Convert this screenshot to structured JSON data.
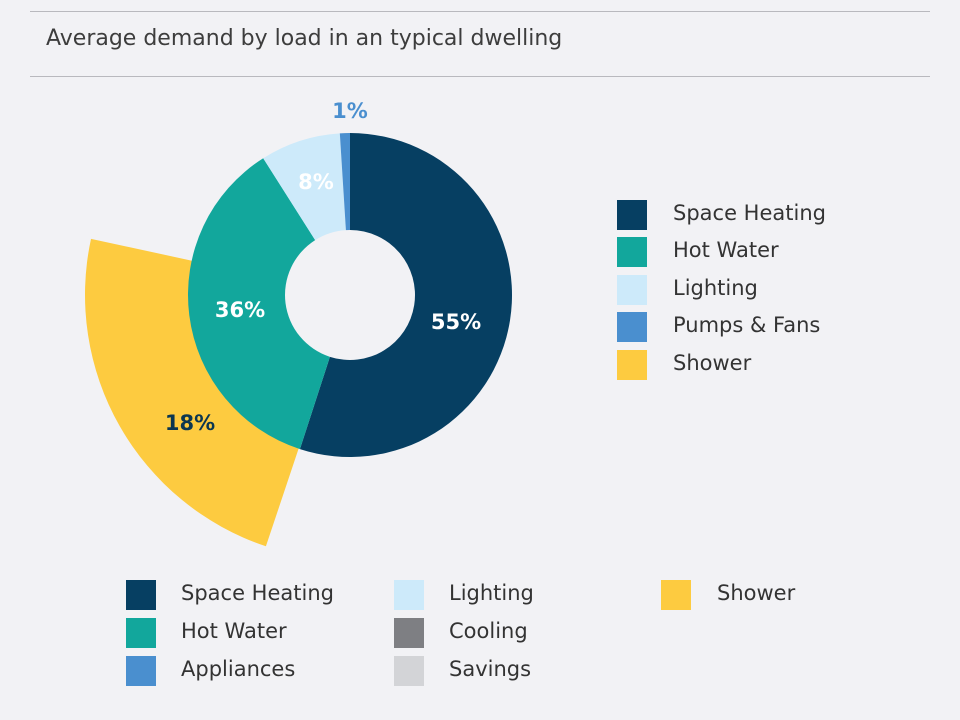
{
  "title": "Average demand by load in an typical dwelling",
  "colors": {
    "space_heating": "#063f62",
    "hot_water": "#12a79c",
    "lighting": "#cdeafa",
    "pumps_fans": "#4a8fcf",
    "shower": "#fdcb40",
    "cooling": "#7e7f83",
    "savings": "#d3d4d7"
  },
  "chart_data": {
    "type": "pie",
    "subtype": "donut with exploded secondary segment",
    "segments": [
      {
        "name": "Space Heating",
        "value": 55,
        "label": "55%",
        "color": "#063f62"
      },
      {
        "name": "Hot Water",
        "value": 36,
        "label": "36%",
        "color": "#12a79c"
      },
      {
        "name": "Lighting",
        "value": 8,
        "label": "8%",
        "color": "#cdeafa"
      },
      {
        "name": "Pumps & Fans",
        "value": 1,
        "label": "1%",
        "color": "#4a8fcf"
      }
    ],
    "sub_segment": {
      "name": "Shower",
      "value": 18,
      "label": "18%",
      "parent": "Hot Water",
      "color": "#fdcb40"
    },
    "legend_position": "right"
  },
  "legend_right": [
    {
      "label": "Space Heating",
      "color": "#063f62"
    },
    {
      "label": "Hot Water",
      "color": "#12a79c"
    },
    {
      "label": "Lighting",
      "color": "#cdeafa"
    },
    {
      "label": "Pumps & Fans",
      "color": "#4a8fcf"
    },
    {
      "label": "Shower",
      "color": "#fdcb40"
    }
  ],
  "legend_bottom": [
    {
      "label": "Space Heating",
      "color": "#063f62"
    },
    {
      "label": "Hot Water",
      "color": "#12a79c"
    },
    {
      "label": "Appliances",
      "color": "#4a8fcf"
    },
    {
      "label": "Lighting",
      "color": "#cdeafa"
    },
    {
      "label": "Cooling",
      "color": "#7e7f83"
    },
    {
      "label": "Savings",
      "color": "#d3d4d7"
    },
    {
      "label": "Shower",
      "color": "#fdcb40"
    }
  ]
}
